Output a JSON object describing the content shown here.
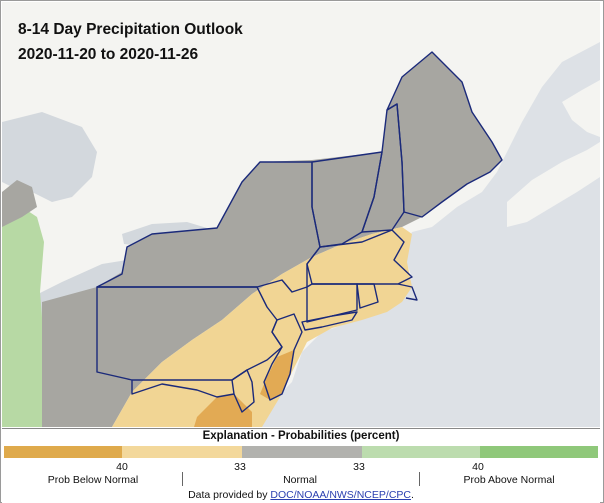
{
  "title": "8-14 Day Precipitation Outlook",
  "date_range": "2020-11-20 to 2020-11-26",
  "legend": {
    "title": "Explanation - Probabilities (percent)",
    "colors": [
      "#dfaa4c",
      "#f3d89b",
      "#b2b2ae",
      "#bcdcae",
      "#8fc87a"
    ],
    "thresholds": [
      "40",
      "33",
      "33",
      "40"
    ],
    "categories": [
      "Prob Below Normal",
      "Normal",
      "Prob Above Normal"
    ]
  },
  "credit": {
    "prefix": "Data provided by ",
    "link_text": "DOC/NOAA/NWS/NCEP/CPC",
    "suffix": "."
  },
  "map_colors": {
    "ocean": "#dde1e6",
    "land": "#f4f4f1",
    "lake": "#d3d8dd",
    "normal": "#a7a6a1",
    "below_33": "#f1d594",
    "below_40": "#e2aa54",
    "above_33": "#b7d9a4",
    "border": "#1b2a7a"
  }
}
